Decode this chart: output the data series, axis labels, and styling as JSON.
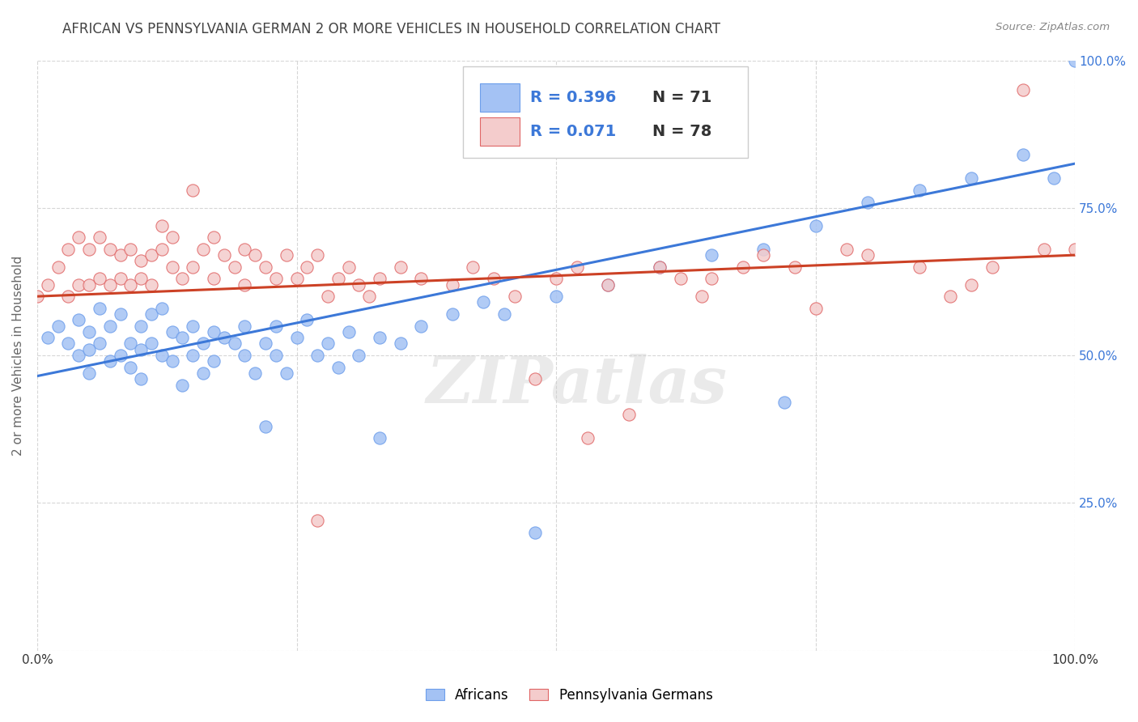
{
  "title": "AFRICAN VS PENNSYLVANIA GERMAN 2 OR MORE VEHICLES IN HOUSEHOLD CORRELATION CHART",
  "source": "Source: ZipAtlas.com",
  "ylabel": "2 or more Vehicles in Household",
  "xlim": [
    0,
    1
  ],
  "ylim": [
    0,
    1
  ],
  "x_ticks": [
    0.0,
    0.25,
    0.5,
    0.75,
    1.0
  ],
  "y_ticks": [
    0.0,
    0.25,
    0.5,
    0.75,
    1.0
  ],
  "x_tick_labels": [
    "0.0%",
    "",
    "",
    "",
    "100.0%"
  ],
  "y_tick_labels_right": [
    "",
    "25.0%",
    "50.0%",
    "75.0%",
    "100.0%"
  ],
  "legend_labels": [
    "Africans",
    "Pennsylvania Germans"
  ],
  "blue_color": "#a4c2f4",
  "pink_color": "#f4cccc",
  "blue_edge_color": "#6d9eeb",
  "pink_edge_color": "#e06666",
  "blue_line_color": "#3c78d8",
  "pink_line_color": "#cc4125",
  "blue_scatter": {
    "x": [
      0.01,
      0.02,
      0.03,
      0.04,
      0.04,
      0.05,
      0.05,
      0.05,
      0.06,
      0.06,
      0.07,
      0.07,
      0.08,
      0.08,
      0.09,
      0.09,
      0.1,
      0.1,
      0.1,
      0.11,
      0.11,
      0.12,
      0.12,
      0.13,
      0.13,
      0.14,
      0.14,
      0.15,
      0.15,
      0.16,
      0.16,
      0.17,
      0.17,
      0.18,
      0.19,
      0.2,
      0.2,
      0.21,
      0.22,
      0.23,
      0.23,
      0.24,
      0.25,
      0.26,
      0.27,
      0.28,
      0.29,
      0.3,
      0.31,
      0.33,
      0.35,
      0.37,
      0.4,
      0.43,
      0.45,
      0.5,
      0.55,
      0.6,
      0.65,
      0.7,
      0.72,
      0.75,
      0.8,
      0.85,
      0.9,
      0.95,
      0.98,
      1.0,
      0.48,
      0.33,
      0.22
    ],
    "y": [
      0.53,
      0.55,
      0.52,
      0.5,
      0.56,
      0.54,
      0.47,
      0.51,
      0.52,
      0.58,
      0.49,
      0.55,
      0.5,
      0.57,
      0.48,
      0.52,
      0.51,
      0.55,
      0.46,
      0.52,
      0.57,
      0.5,
      0.58,
      0.49,
      0.54,
      0.45,
      0.53,
      0.5,
      0.55,
      0.52,
      0.47,
      0.54,
      0.49,
      0.53,
      0.52,
      0.5,
      0.55,
      0.47,
      0.52,
      0.55,
      0.5,
      0.47,
      0.53,
      0.56,
      0.5,
      0.52,
      0.48,
      0.54,
      0.5,
      0.53,
      0.52,
      0.55,
      0.57,
      0.59,
      0.57,
      0.6,
      0.62,
      0.65,
      0.67,
      0.68,
      0.42,
      0.72,
      0.76,
      0.78,
      0.8,
      0.84,
      0.8,
      1.0,
      0.2,
      0.36,
      0.38
    ]
  },
  "pink_scatter": {
    "x": [
      0.0,
      0.01,
      0.02,
      0.03,
      0.03,
      0.04,
      0.04,
      0.05,
      0.05,
      0.06,
      0.06,
      0.07,
      0.07,
      0.08,
      0.08,
      0.09,
      0.09,
      0.1,
      0.1,
      0.11,
      0.11,
      0.12,
      0.12,
      0.13,
      0.13,
      0.14,
      0.15,
      0.15,
      0.16,
      0.17,
      0.17,
      0.18,
      0.19,
      0.2,
      0.2,
      0.21,
      0.22,
      0.23,
      0.24,
      0.25,
      0.26,
      0.27,
      0.28,
      0.29,
      0.3,
      0.31,
      0.32,
      0.33,
      0.35,
      0.37,
      0.4,
      0.42,
      0.44,
      0.46,
      0.48,
      0.5,
      0.52,
      0.55,
      0.57,
      0.6,
      0.62,
      0.65,
      0.68,
      0.7,
      0.73,
      0.75,
      0.78,
      0.8,
      0.85,
      0.88,
      0.9,
      0.92,
      0.95,
      0.97,
      1.0,
      0.53,
      0.64,
      0.27
    ],
    "y": [
      0.6,
      0.62,
      0.65,
      0.6,
      0.68,
      0.62,
      0.7,
      0.62,
      0.68,
      0.63,
      0.7,
      0.62,
      0.68,
      0.63,
      0.67,
      0.62,
      0.68,
      0.63,
      0.66,
      0.62,
      0.67,
      0.68,
      0.72,
      0.65,
      0.7,
      0.63,
      0.78,
      0.65,
      0.68,
      0.63,
      0.7,
      0.67,
      0.65,
      0.62,
      0.68,
      0.67,
      0.65,
      0.63,
      0.67,
      0.63,
      0.65,
      0.67,
      0.6,
      0.63,
      0.65,
      0.62,
      0.6,
      0.63,
      0.65,
      0.63,
      0.62,
      0.65,
      0.63,
      0.6,
      0.46,
      0.63,
      0.65,
      0.62,
      0.4,
      0.65,
      0.63,
      0.63,
      0.65,
      0.67,
      0.65,
      0.58,
      0.68,
      0.67,
      0.65,
      0.6,
      0.62,
      0.65,
      0.95,
      0.68,
      0.68,
      0.36,
      0.6,
      0.22
    ]
  },
  "blue_line_y0": 0.465,
  "blue_line_y1": 0.825,
  "pink_line_y0": 0.6,
  "pink_line_y1": 0.67,
  "watermark_text": "ZIPatlas",
  "background_color": "#ffffff",
  "grid_color": "#cccccc",
  "title_color": "#434343",
  "title_fontsize": 12,
  "axis_label_color": "#666666",
  "right_tick_color": "#3c78d8",
  "legend_R_color": "#3c78d8",
  "legend_N_color": "#333333"
}
